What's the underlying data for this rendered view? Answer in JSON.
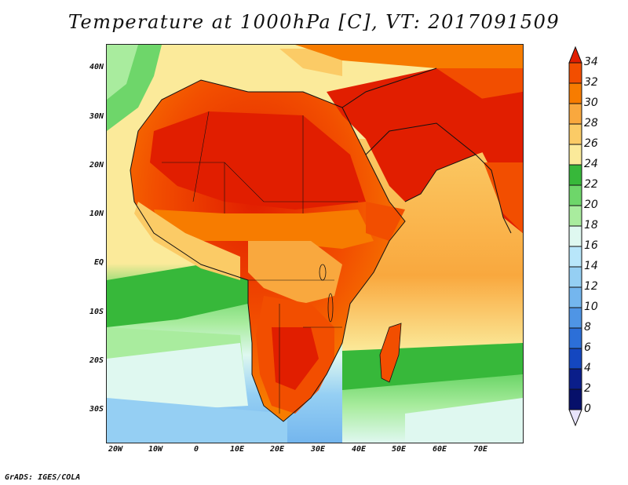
{
  "title": "Temperature at 1000hPa [C], VT: 2017091509",
  "credit": "GrADS: IGES/COLA",
  "axes": {
    "lat_labels": [
      "40N",
      "30N",
      "20N",
      "10N",
      "EQ",
      "10S",
      "20S",
      "30S"
    ],
    "lon_labels": [
      "20W",
      "10W",
      "0",
      "10E",
      "20E",
      "30E",
      "40E",
      "50E",
      "60E",
      "70E"
    ]
  },
  "colorbar": {
    "labels": [
      "34",
      "32",
      "30",
      "28",
      "26",
      "24",
      "22",
      "20",
      "18",
      "16",
      "14",
      "12",
      "10",
      "8",
      "6",
      "4",
      "2",
      "0"
    ],
    "colors": [
      "#e11e00",
      "#f24e00",
      "#f77c00",
      "#f9a83e",
      "#fbcb66",
      "#fbea9a",
      "#37b83a",
      "#6ed66a",
      "#a9ec9e",
      "#dff8f0",
      "#b8e6fa",
      "#95cff3",
      "#74b6ee",
      "#4f95e5",
      "#2c6fd8",
      "#1447c0",
      "#0a1e8a",
      "#06106a"
    ]
  },
  "regions": {
    "hot": "#e11e00",
    "warm": "#f77c00",
    "mild": "#fbcb66",
    "cool": "#6ed66a",
    "cold": "#95cff3"
  }
}
